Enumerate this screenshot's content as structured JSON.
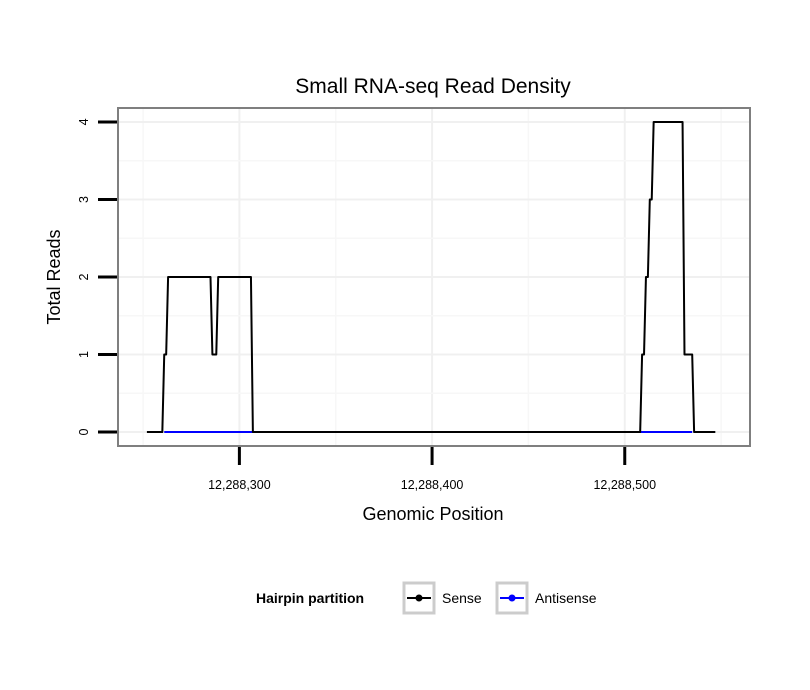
{
  "chart_data": {
    "type": "line",
    "title": "Small RNA-seq Read Density",
    "xlabel": "Genomic Position",
    "ylabel": "Total Reads",
    "xlim": [
      12288237,
      12288565
    ],
    "ylim": [
      -0.18,
      4.18
    ],
    "x_ticks": [
      12288300,
      12288400,
      12288500
    ],
    "x_tick_labels": [
      "12,288,300",
      "12,288,400",
      "12,288,500"
    ],
    "y_ticks": [
      0,
      1,
      2,
      3,
      4
    ],
    "y_tick_labels": [
      "0",
      "1",
      "2",
      "3",
      "4"
    ],
    "grid": true,
    "legend": {
      "title": "Hairpin partition",
      "position": "bottom"
    },
    "series": [
      {
        "name": "Sense",
        "color": "#000000",
        "x": [
          12288252,
          12288260,
          12288261,
          12288262,
          12288263,
          12288264,
          12288285,
          12288286,
          12288288,
          12288289,
          12288306,
          12288307,
          12288508,
          12288509,
          12288510,
          12288511,
          12288512,
          12288513,
          12288514,
          12288515,
          12288530,
          12288531,
          12288535,
          12288536,
          12288547
        ],
        "y": [
          0,
          0,
          1,
          1,
          2,
          2,
          2,
          1,
          1,
          2,
          2,
          0,
          0,
          1,
          1,
          2,
          2,
          3,
          3,
          4,
          4,
          1,
          1,
          0,
          0
        ]
      },
      {
        "name": "Antisense",
        "color": "#0000ff",
        "x": [
          12288261,
          12288306,
          12288509,
          12288535
        ],
        "y": [
          0,
          0,
          0,
          0
        ]
      }
    ]
  }
}
